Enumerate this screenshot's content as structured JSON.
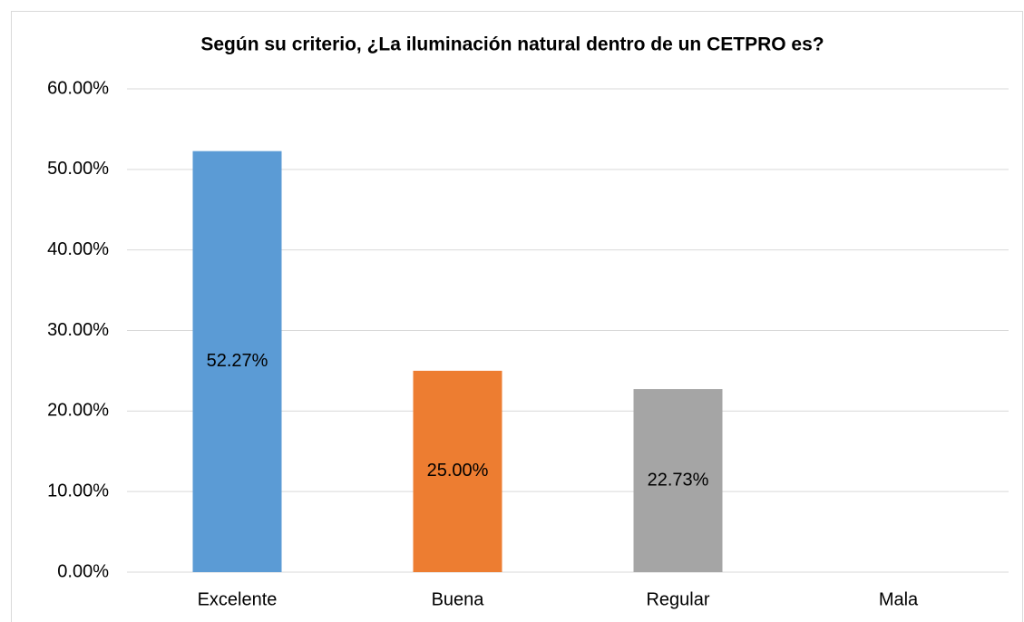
{
  "chart_data": {
    "type": "bar",
    "title": "Según su criterio, ¿La iluminación natural dentro de un CETPRO es?",
    "categories": [
      "Excelente",
      "Buena",
      "Regular",
      "Mala"
    ],
    "values": [
      52.27,
      25.0,
      22.73,
      null
    ],
    "value_labels": [
      "52.27%",
      "25.00%",
      "22.73%",
      null
    ],
    "colors": [
      "#5b9bd5",
      "#ed7d31",
      "#a5a5a5",
      "#ffc000"
    ],
    "ylim": [
      0,
      60
    ],
    "yticks": [
      {
        "value": 0,
        "label": "0.00%"
      },
      {
        "value": 10,
        "label": "10.00%"
      },
      {
        "value": 20,
        "label": "20.00%"
      },
      {
        "value": 30,
        "label": "30.00%"
      },
      {
        "value": 40,
        "label": "40.00%"
      },
      {
        "value": 50,
        "label": "50.00%"
      },
      {
        "value": 60,
        "label": "60.00%"
      }
    ],
    "grid": true
  }
}
